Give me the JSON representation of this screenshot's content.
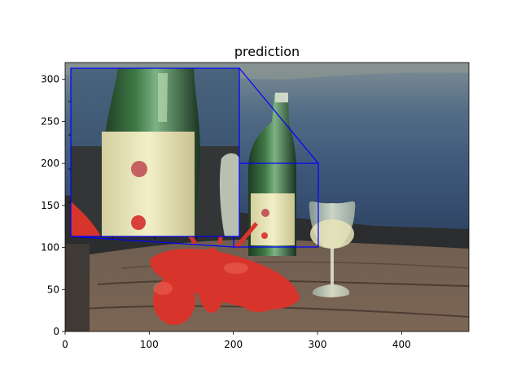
{
  "figure": {
    "title": "prediction"
  },
  "chart_data": {
    "type": "image",
    "title": "prediction",
    "xlim": [
      0,
      480
    ],
    "ylim": [
      0,
      320
    ],
    "x_ticks": [
      0,
      100,
      200,
      300,
      400
    ],
    "y_ticks": [
      0,
      50,
      100,
      150,
      200,
      250,
      300
    ],
    "x_tick_labels": [
      "0",
      "100",
      "200",
      "300",
      "400"
    ],
    "y_tick_labels": [
      "0",
      "50",
      "100",
      "150",
      "200",
      "250",
      "300"
    ],
    "grid": false,
    "zoom_region": {
      "x_range": [
        200,
        300
      ],
      "y_range": [
        100,
        200
      ],
      "color": "#0000ff"
    },
    "inset_zoom": true,
    "scene_elements": [
      "water",
      "wine-bottle",
      "wine-glass",
      "red-lobster",
      "wooden-table"
    ]
  }
}
